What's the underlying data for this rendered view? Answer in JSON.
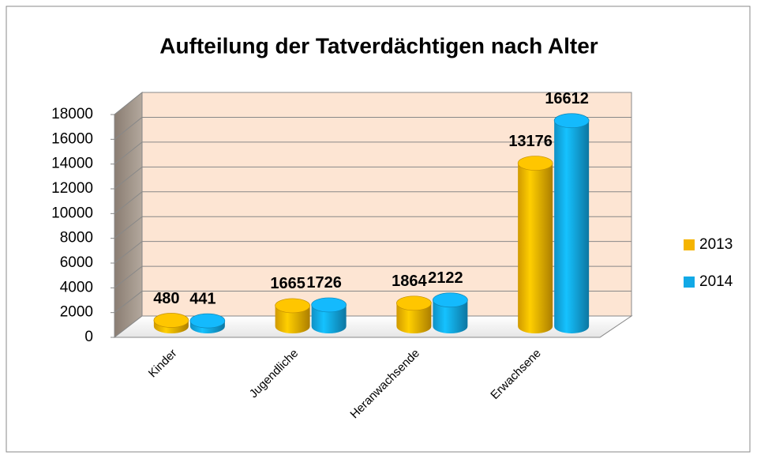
{
  "chart_data": {
    "type": "bar3d",
    "title": "Aufteilung der Tatverdächtigen nach Alter",
    "categories": [
      "Kinder",
      "Jugendliche",
      "Heranwachsende",
      "Erwachsene"
    ],
    "series": [
      {
        "name": "2013",
        "color": "#f5b400",
        "values": [
          480,
          1665,
          1864,
          13176
        ]
      },
      {
        "name": "2014",
        "color": "#12a9e6",
        "values": [
          441,
          1726,
          2122,
          16612
        ]
      }
    ],
    "ylim": [
      0,
      18000
    ],
    "yticks": [
      0,
      2000,
      4000,
      6000,
      8000,
      10000,
      12000,
      14000,
      16000,
      18000
    ],
    "grid": true,
    "legend": "right"
  }
}
